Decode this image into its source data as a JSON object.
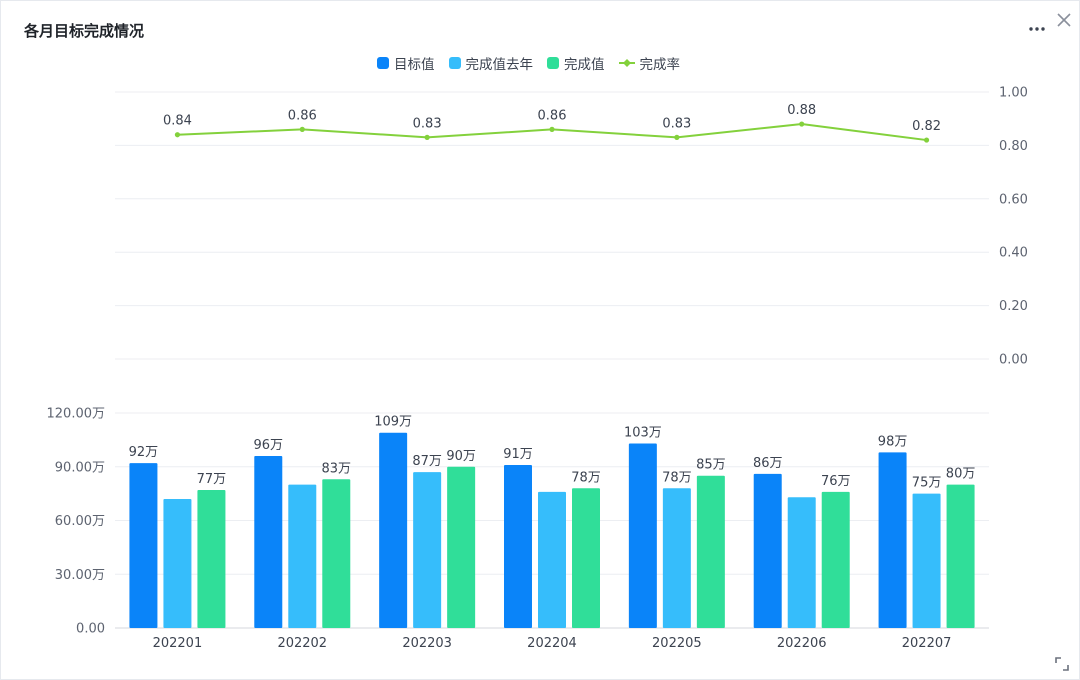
{
  "title": "各月目标完成情况",
  "legend": [
    {
      "label": "目标值",
      "color": "#0a84f9",
      "kind": "bar"
    },
    {
      "label": "完成值去年",
      "color": "#36bdfb",
      "kind": "bar"
    },
    {
      "label": "完成值",
      "color": "#30de99",
      "kind": "bar"
    },
    {
      "label": "完成率",
      "color": "#83d13c",
      "kind": "line"
    }
  ],
  "icons": {
    "more": "more-icon",
    "close": "close-icon",
    "resize": "resize-icon"
  },
  "chart_data": [
    {
      "type": "line",
      "categories": [
        "202201",
        "202202",
        "202203",
        "202204",
        "202205",
        "202206",
        "202207"
      ],
      "series": [
        {
          "name": "完成率",
          "values": [
            0.84,
            0.86,
            0.83,
            0.86,
            0.83,
            0.88,
            0.82
          ],
          "color": "#83d13c"
        }
      ],
      "data_labels": [
        "0.84",
        "0.86",
        "0.83",
        "0.86",
        "0.83",
        "0.88",
        "0.82"
      ],
      "y_ticks": [
        "0.00",
        "0.20",
        "0.40",
        "0.60",
        "0.80",
        "1.00"
      ],
      "ylim": [
        0,
        1
      ],
      "y_axis_side": "right",
      "grid": true
    },
    {
      "type": "bar",
      "categories": [
        "202201",
        "202202",
        "202203",
        "202204",
        "202205",
        "202206",
        "202207"
      ],
      "series": [
        {
          "name": "目标值",
          "values": [
            92,
            96,
            109,
            91,
            103,
            86,
            98
          ],
          "labels": [
            "92万",
            "96万",
            "109万",
            "91万",
            "103万",
            "86万",
            "98万"
          ],
          "color": "#0a84f9"
        },
        {
          "name": "完成值去年",
          "values": [
            72,
            80,
            87,
            76,
            78,
            73,
            75
          ],
          "labels": [
            "",
            "",
            "87万",
            "",
            "78万",
            "",
            "75万"
          ],
          "color": "#36bdfb"
        },
        {
          "name": "完成值",
          "values": [
            77,
            83,
            90,
            78,
            85,
            76,
            80
          ],
          "labels": [
            "77万",
            "83万",
            "90万",
            "78万",
            "85万",
            "76万",
            "80万"
          ],
          "color": "#30de99"
        }
      ],
      "y_ticks": [
        "0.00",
        "30.00万",
        "60.00万",
        "90.00万",
        "120.00万"
      ],
      "ylim": [
        0,
        120
      ],
      "y_axis_side": "left",
      "grid": true
    }
  ]
}
